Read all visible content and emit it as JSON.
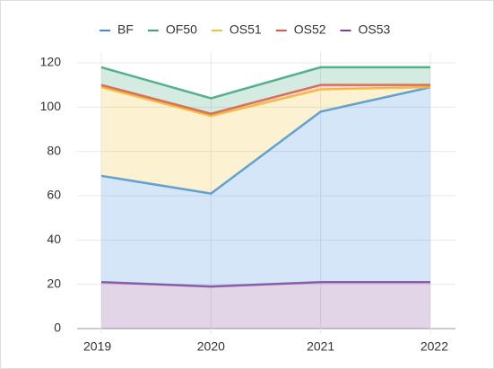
{
  "chart_data": {
    "type": "stacked_area",
    "categories": [
      "2019",
      "2020",
      "2021",
      "2022"
    ],
    "series": [
      {
        "name": "BF",
        "color": "#3b8fd9",
        "values": [
          48,
          42,
          77,
          88
        ]
      },
      {
        "name": "OF50",
        "color": "#3aa57a",
        "values": [
          8,
          7,
          8,
          8
        ]
      },
      {
        "name": "OS51",
        "color": "#f2c12e",
        "values": [
          40,
          35,
          10,
          0
        ]
      },
      {
        "name": "OS52",
        "color": "#e9533f",
        "values": [
          1,
          1,
          2,
          1
        ]
      },
      {
        "name": "OS53",
        "color": "#7e3f98",
        "values": [
          21,
          19,
          21,
          21
        ]
      }
    ],
    "ylim": [
      0,
      120
    ],
    "yticks": [
      0,
      20,
      40,
      60,
      80,
      100,
      120
    ],
    "grid": true
  }
}
